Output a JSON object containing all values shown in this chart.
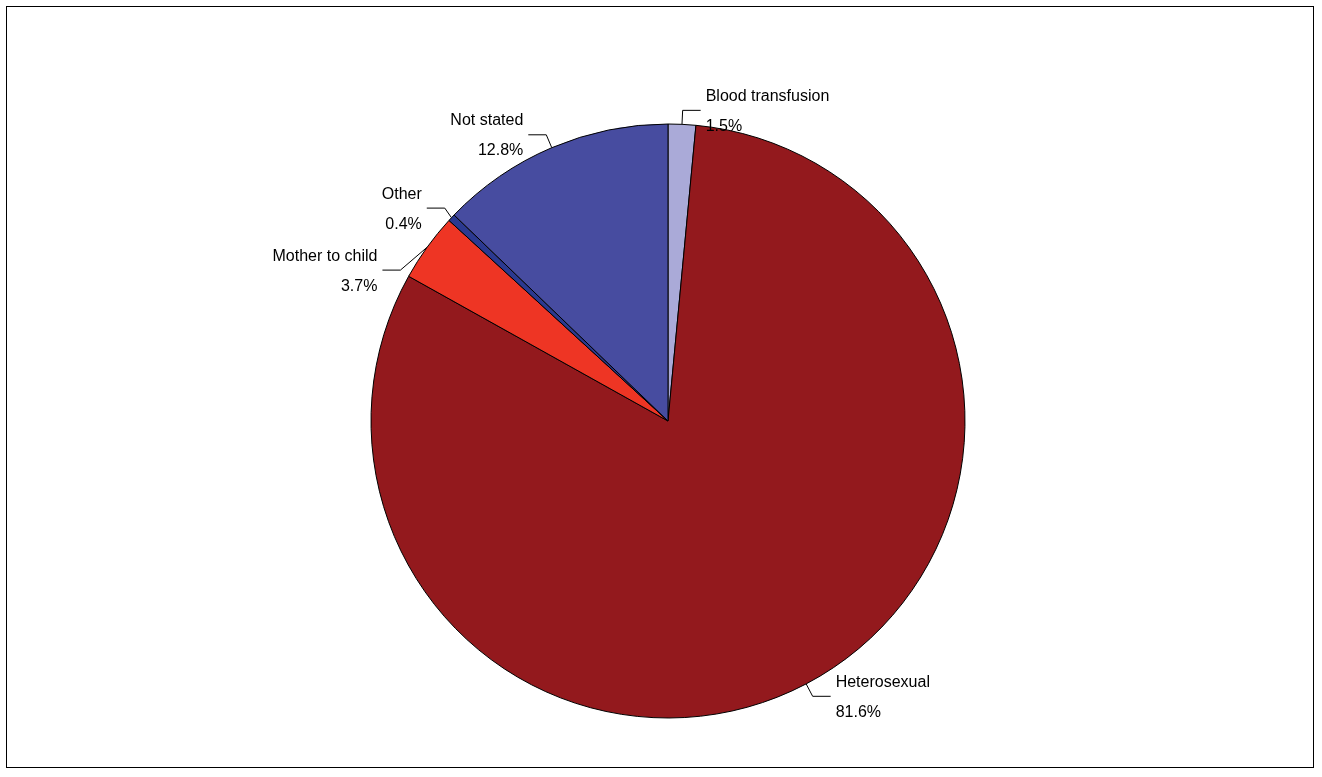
{
  "chart_data": {
    "type": "pie",
    "categories": [
      "Blood transfusion",
      "Heterosexual",
      "Mother to child",
      "Other",
      "Not stated"
    ],
    "values": [
      1.5,
      81.6,
      3.7,
      0.4,
      12.8
    ],
    "value_labels": [
      "1.5%",
      "81.6%",
      "3.7%",
      "0.4%",
      "12.8%"
    ],
    "colors": [
      "#aaaad8",
      "#93191d",
      "#ee3524",
      "#2b3990",
      "#474ca0"
    ]
  }
}
